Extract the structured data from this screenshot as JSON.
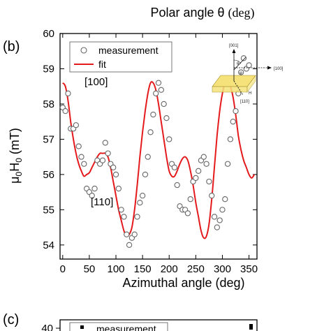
{
  "top_title": {
    "prefix": "Polar angle θ",
    "unit": "(deg)"
  },
  "panel_b": {
    "label": "(b)"
  },
  "panel_c": {
    "label": "(c)",
    "y_tick": "40",
    "legend_label": "measurement"
  },
  "inset": {
    "dir_001": "[001]",
    "dir_100": "[100]",
    "dir_110": "[110]",
    "theta": "θ",
    "phi": "φ",
    "h": "H"
  },
  "annotations": {
    "a100": "[100]",
    "a110": "[110]"
  },
  "colors": {
    "fit": "#e41a1c",
    "marker": "#666666",
    "inset_block": "#f5e27a"
  },
  "chart_data": {
    "type": "scatter",
    "title": "",
    "xlabel": "Azimuthal angle (deg)",
    "ylabel": "μ0H0 (mT)",
    "xlim": [
      -5,
      365
    ],
    "ylim": [
      53.6,
      60
    ],
    "x_ticks": [
      0,
      50,
      100,
      150,
      200,
      250,
      300,
      350
    ],
    "y_ticks": [
      54,
      55,
      56,
      57,
      58,
      59,
      60
    ],
    "grid": false,
    "legend_position": "top-left",
    "series": [
      {
        "name": "measurement",
        "marker": "open-circle",
        "x": [
          0,
          5,
          10,
          15,
          20,
          25,
          30,
          35,
          40,
          45,
          50,
          55,
          60,
          65,
          70,
          75,
          80,
          85,
          90,
          95,
          100,
          105,
          110,
          115,
          120,
          125,
          130,
          135,
          140,
          145,
          150,
          155,
          160,
          165,
          170,
          175,
          180,
          185,
          190,
          195,
          200,
          205,
          210,
          215,
          220,
          225,
          230,
          235,
          240,
          245,
          250,
          255,
          260,
          265,
          270,
          275,
          280,
          285,
          290,
          295,
          300,
          305,
          310,
          315,
          320,
          325,
          330,
          335,
          340,
          345,
          350,
          355,
          360
        ],
        "y": [
          57.9,
          57.8,
          58.3,
          57.3,
          57.3,
          57.4,
          56.8,
          56.5,
          56.3,
          55.6,
          55.5,
          55.4,
          55.6,
          56.4,
          56.3,
          56.4,
          56.9,
          56.6,
          56.3,
          56.2,
          56.0,
          55.6,
          55.0,
          54.8,
          54.3,
          54.0,
          54.2,
          54.3,
          54.8,
          55.2,
          55.4,
          56.0,
          56.5,
          57.2,
          57.7,
          58.3,
          58.6,
          58.4,
          58.0,
          57.6,
          57.0,
          56.3,
          56.2,
          55.7,
          55.1,
          55.0,
          55.0,
          54.9,
          55.3,
          55.8,
          55.9,
          56.1,
          56.4,
          56.5,
          56.3,
          55.8,
          55.4,
          54.8,
          54.5,
          54.7,
          55.0,
          55.3,
          56.3,
          57.0,
          57.5,
          57.8,
          58.3,
          58.9,
          59.3,
          59.0,
          59.1,
          null,
          null
        ]
      },
      {
        "name": "fit",
        "line": "solid",
        "x": [
          0,
          5,
          10,
          15,
          20,
          25,
          30,
          35,
          40,
          45,
          50,
          55,
          60,
          65,
          70,
          75,
          80,
          85,
          90,
          95,
          100,
          105,
          110,
          115,
          120,
          125,
          130,
          135,
          140,
          145,
          150,
          155,
          160,
          165,
          170,
          175,
          180,
          185,
          190,
          195,
          200,
          205,
          210,
          215,
          220,
          225,
          230,
          235,
          240,
          245,
          250,
          255,
          260,
          265,
          270,
          275,
          280,
          285,
          290,
          295,
          300,
          305,
          310,
          315,
          320,
          325,
          330,
          335,
          340,
          345,
          350,
          355,
          360
        ],
        "y": [
          58.6,
          58.5,
          58.1,
          57.5,
          57.0,
          56.6,
          56.3,
          56.1,
          55.95,
          56.0,
          56.05,
          56.2,
          56.35,
          56.5,
          56.6,
          56.6,
          56.6,
          56.5,
          56.2,
          55.8,
          55.4,
          55.0,
          54.7,
          54.4,
          54.25,
          54.3,
          54.5,
          55.0,
          55.7,
          56.5,
          57.2,
          57.8,
          58.3,
          58.6,
          58.6,
          58.4,
          58.0,
          57.5,
          57.0,
          56.5,
          56.1,
          55.95,
          55.95,
          56.1,
          56.3,
          56.45,
          56.5,
          56.4,
          56.1,
          55.7,
          55.2,
          54.8,
          54.4,
          54.2,
          54.25,
          54.6,
          55.3,
          56.2,
          57.1,
          57.8,
          58.3,
          58.6,
          58.6,
          58.5,
          58.2,
          57.7,
          57.1,
          56.7,
          56.4,
          56.2,
          56.0,
          55.9,
          56.0
        ]
      }
    ]
  }
}
